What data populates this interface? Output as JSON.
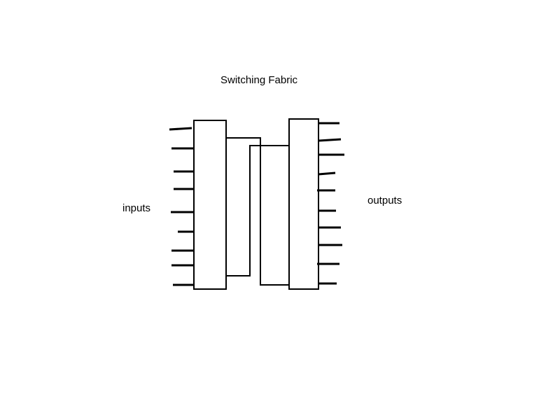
{
  "diagram": {
    "title": "Switching Fabric",
    "inputs_label": "inputs",
    "outputs_label": "outputs",
    "input_line_count": 9,
    "output_line_count": 10
  },
  "colors": {
    "stroke": "#000000",
    "background": "#ffffff"
  }
}
